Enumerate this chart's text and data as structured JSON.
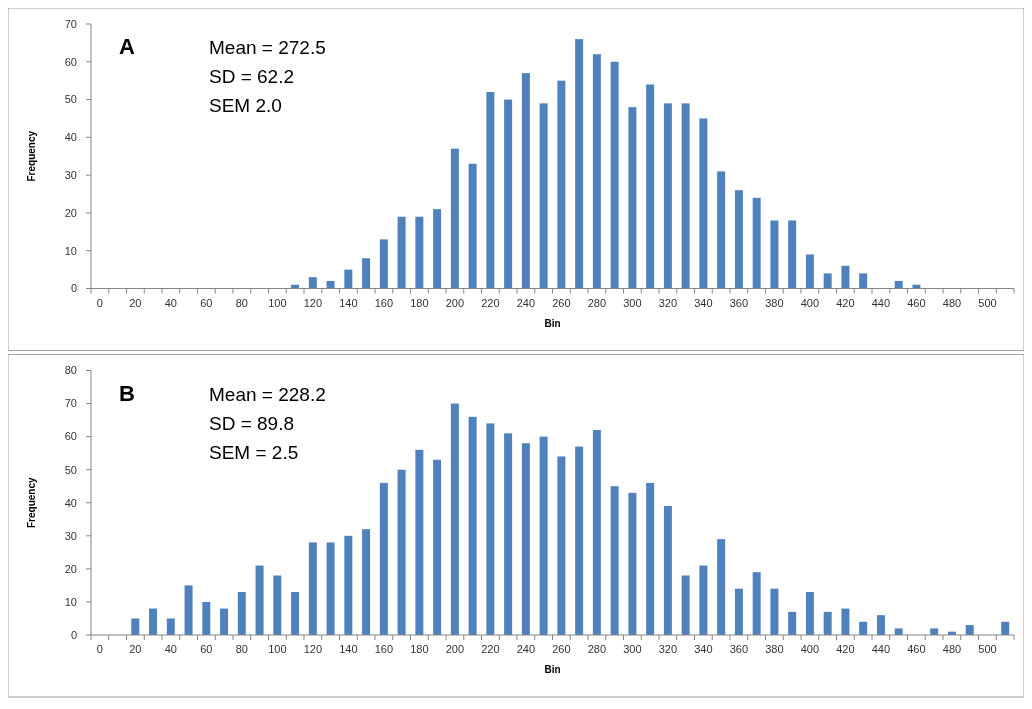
{
  "chart_data": [
    {
      "type": "bar",
      "xlabel": "Bin",
      "ylabel": "Frequency",
      "annotations": [
        "A",
        "Mean = 272.5",
        "SD = 62.2",
        "SEM 2.0"
      ],
      "categories": [
        "0",
        null,
        "20",
        null,
        "40",
        null,
        "60",
        null,
        "80",
        null,
        "100",
        null,
        "120",
        null,
        "140",
        null,
        "160",
        null,
        "180",
        null,
        "200",
        null,
        "220",
        null,
        "240",
        null,
        "260",
        null,
        "280",
        null,
        "300",
        null,
        "320",
        null,
        "340",
        null,
        "360",
        null,
        "380",
        null,
        "400",
        null,
        "420",
        null,
        "440",
        null,
        "460",
        null,
        "480",
        null,
        "500",
        null
      ],
      "values": [
        0,
        0,
        0,
        0,
        0,
        0,
        0,
        0,
        0,
        0,
        0,
        1,
        3,
        2,
        5,
        8,
        13,
        19,
        19,
        21,
        37,
        33,
        52,
        50,
        57,
        49,
        55,
        66,
        62,
        60,
        48,
        54,
        49,
        49,
        45,
        31,
        26,
        24,
        18,
        18,
        9,
        4,
        6,
        4,
        0,
        2,
        1,
        0,
        0,
        0,
        0,
        0
      ],
      "color": "#4f81bd",
      "ylim": [
        0,
        70
      ],
      "yticks": [
        0,
        10,
        20,
        30,
        40,
        50,
        60,
        70
      ],
      "grid": false
    },
    {
      "type": "bar",
      "xlabel": "Bin",
      "ylabel": "Frequency",
      "annotations": [
        "B",
        "Mean = 228.2",
        "SD = 89.8",
        "SEM = 2.5"
      ],
      "categories": [
        "0",
        null,
        "20",
        null,
        "40",
        null,
        "60",
        null,
        "80",
        null,
        "100",
        null,
        "120",
        null,
        "140",
        null,
        "160",
        null,
        "180",
        null,
        "200",
        null,
        "220",
        null,
        "240",
        null,
        "260",
        null,
        "280",
        null,
        "300",
        null,
        "320",
        null,
        "340",
        null,
        "360",
        null,
        "380",
        null,
        "400",
        null,
        "420",
        null,
        "440",
        null,
        "460",
        null,
        "480",
        null,
        "500",
        null
      ],
      "values": [
        0,
        0,
        5,
        8,
        5,
        15,
        10,
        8,
        13,
        21,
        18,
        13,
        28,
        28,
        30,
        32,
        46,
        50,
        56,
        53,
        70,
        66,
        64,
        61,
        58,
        60,
        54,
        57,
        62,
        45,
        43,
        46,
        39,
        18,
        21,
        29,
        14,
        19,
        14,
        7,
        13,
        7,
        8,
        4,
        6,
        2,
        0,
        2,
        1,
        3,
        0,
        4
      ],
      "color": "#4f81bd",
      "ylim": [
        0,
        80
      ],
      "yticks": [
        0,
        10,
        20,
        30,
        40,
        50,
        60,
        70,
        80
      ],
      "grid": false
    }
  ]
}
